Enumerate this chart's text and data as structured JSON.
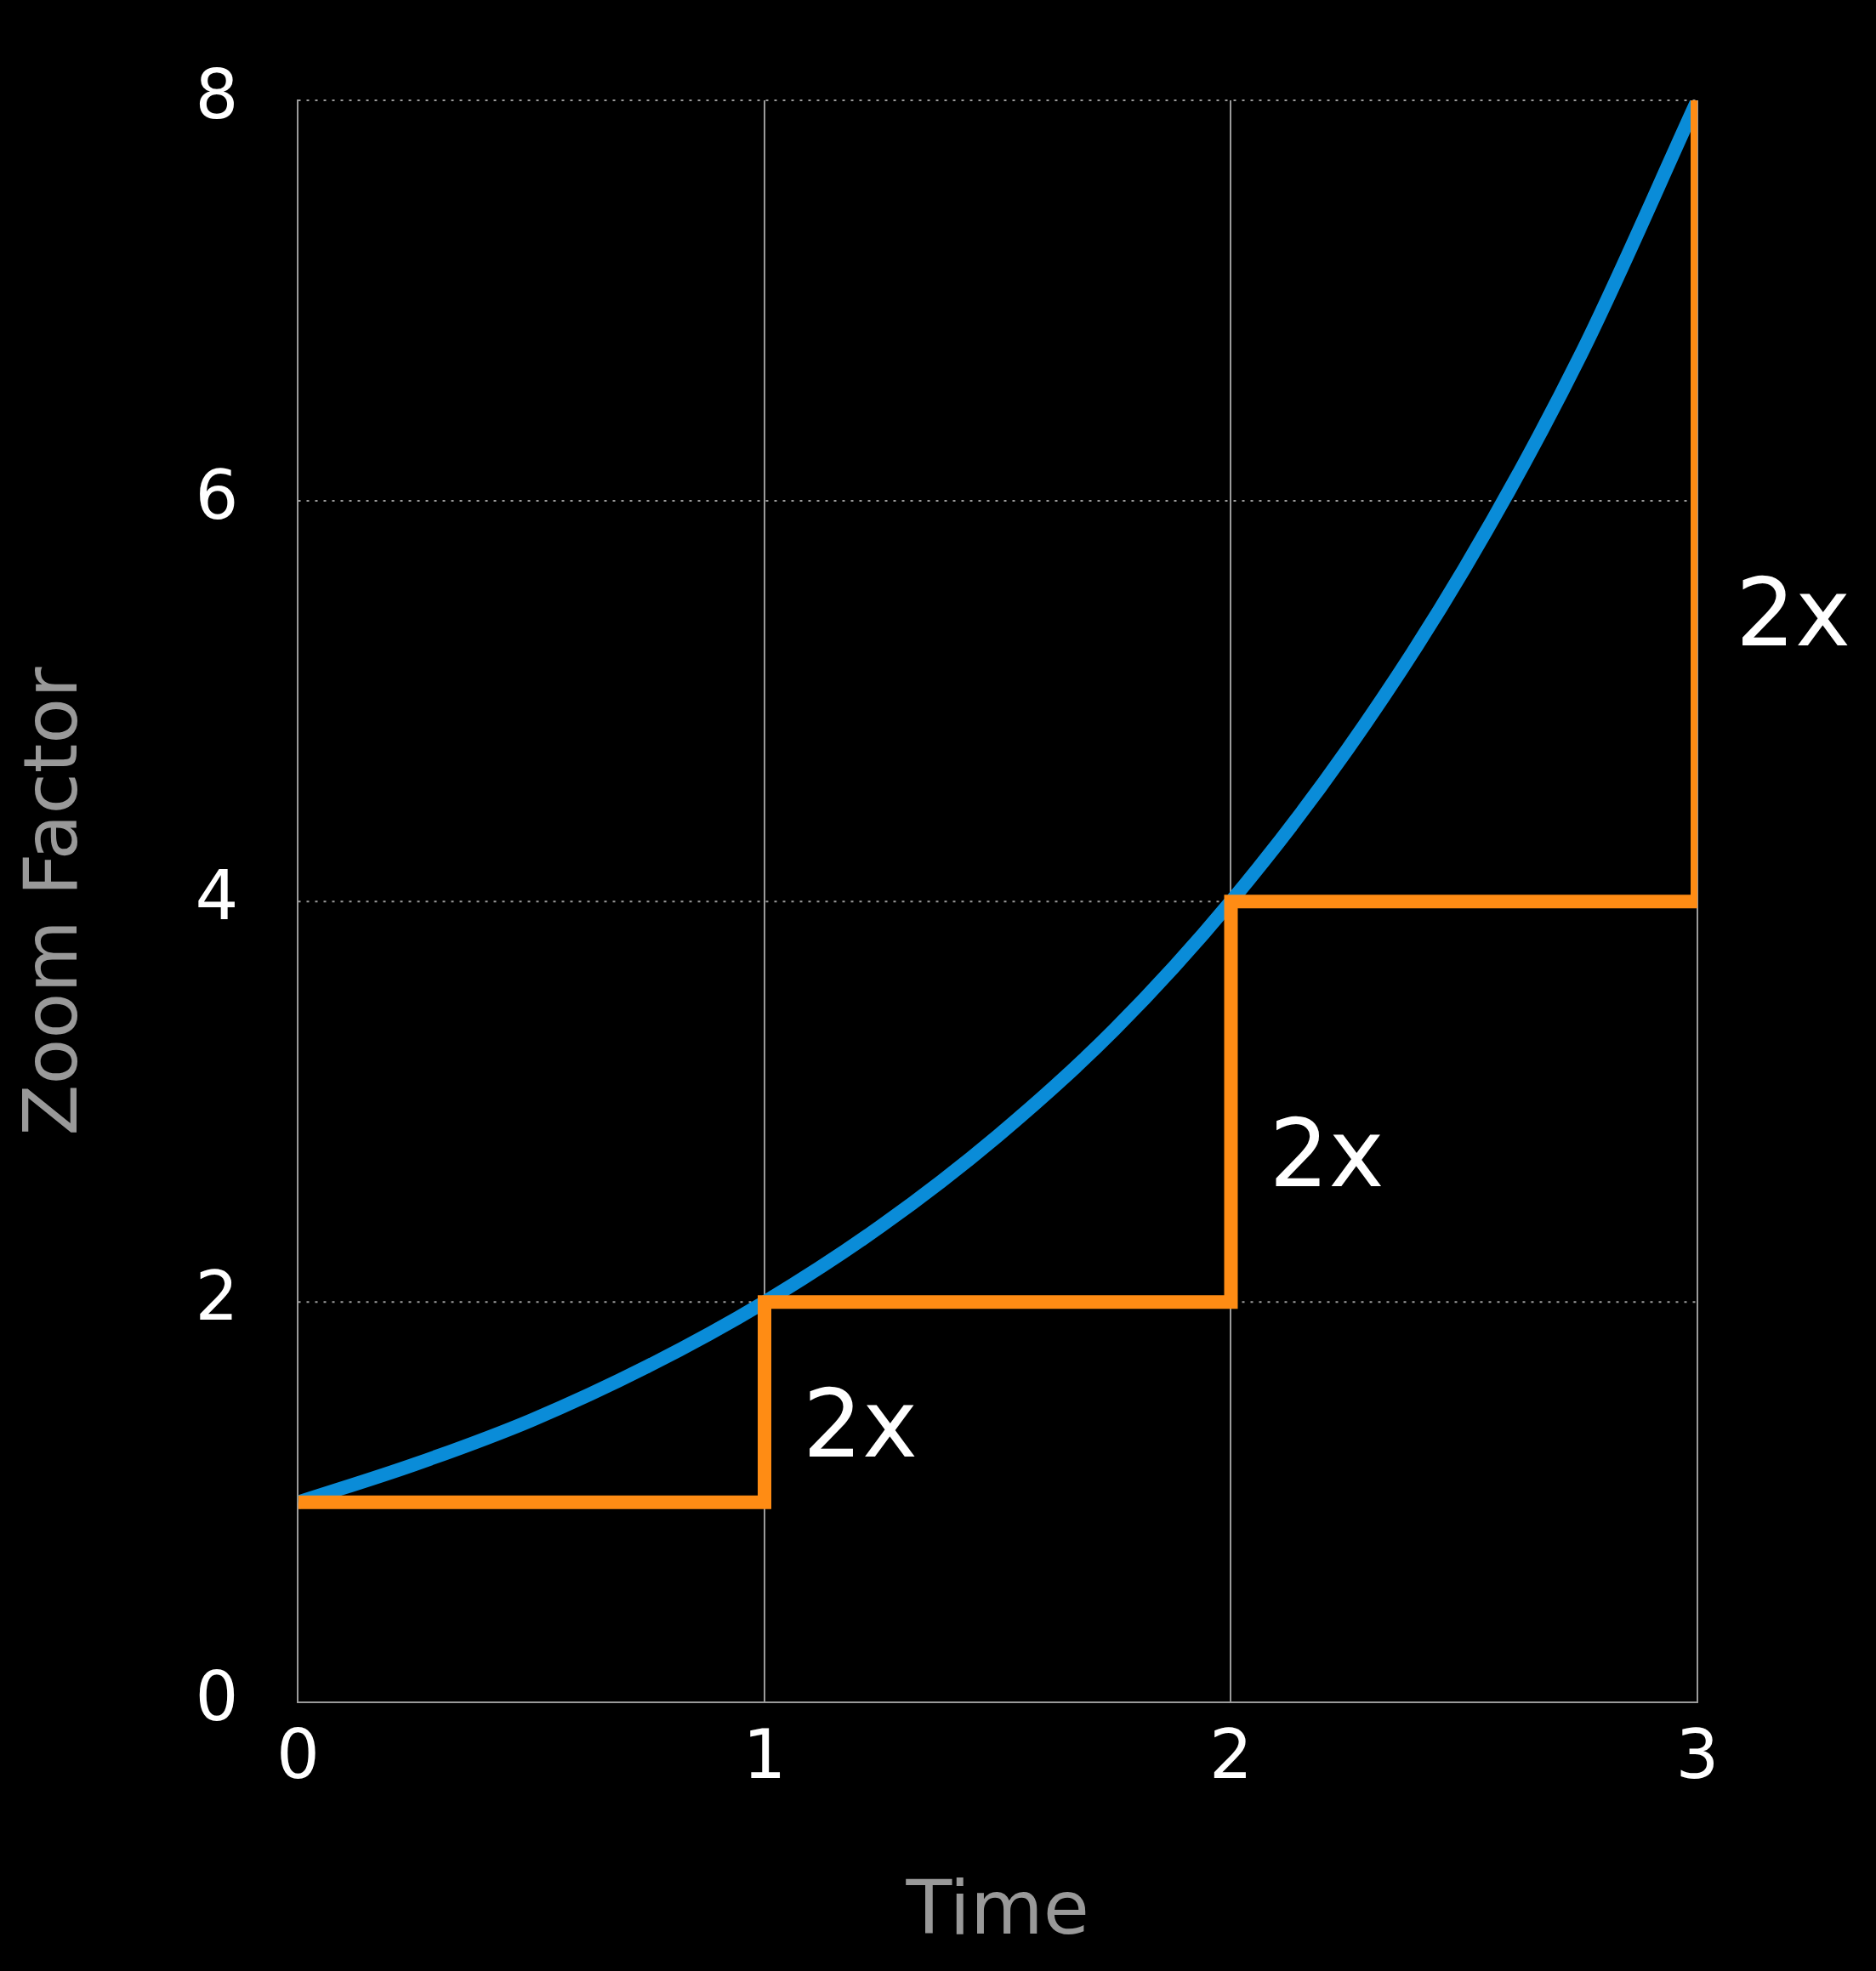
{
  "chart_data": {
    "type": "line",
    "xlabel": "Time",
    "ylabel": "Zoom Factor",
    "xlim": [
      0,
      3
    ],
    "xticks": [
      0,
      1,
      2,
      3
    ],
    "ylim": [
      0,
      8
    ],
    "yticks": [
      0,
      2,
      4,
      6,
      8
    ],
    "grid": true,
    "legend": false,
    "marker": "none",
    "series": [
      {
        "color": "#0a8cd8",
        "x": [
          0,
          0.25,
          0.5,
          0.75,
          1,
          1.25,
          1.5,
          1.75,
          2,
          2.25,
          2.5,
          2.75,
          3
        ],
        "values": [
          1,
          1.19,
          1.41,
          1.68,
          2,
          2.38,
          2.83,
          3.36,
          4,
          4.76,
          5.66,
          6.73,
          8
        ]
      },
      {
        "type": "step",
        "color": "#ff8c14",
        "x": [
          0,
          1,
          2,
          3
        ],
        "values": [
          1,
          2,
          4,
          8
        ]
      }
    ],
    "annotations": [
      "2x",
      "2x",
      "2x"
    ]
  }
}
